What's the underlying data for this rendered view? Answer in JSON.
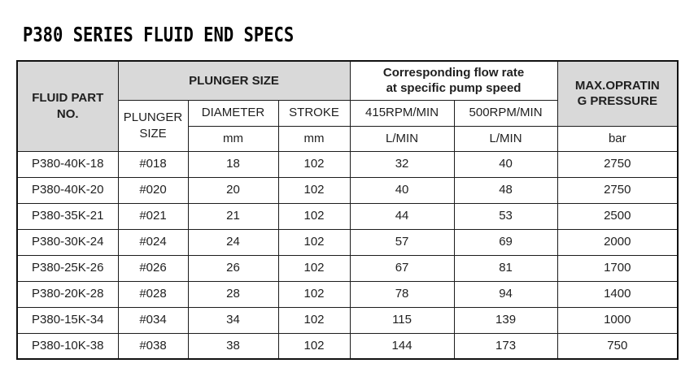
{
  "page_title": "P380 SERIES FLUID END SPECS",
  "colors": {
    "header_fill": "#d9d9d9",
    "border": "#1c1c1c",
    "text": "#1f1f1f",
    "background": "#ffffff"
  },
  "table": {
    "header": {
      "fluid_part": {
        "line1": "FLUID PART",
        "line2": "NO."
      },
      "plunger_size_group": "PLUNGER SIZE",
      "plunger_size_sub": {
        "line1": "PLUNGER",
        "line2": "SIZE"
      },
      "diameter": "DIAMETER",
      "stroke": "STROKE",
      "flow_rate_group": {
        "line1": "Corresponding flow rate",
        "line2": "at specific pump speed"
      },
      "rpm_415": "415RPM/MIN",
      "rpm_500": "500RPM/MIN",
      "max_pressure": {
        "line1": "MAX.OPRATIN",
        "line2": "G PRESSURE"
      },
      "units": {
        "diameter_mm": "mm",
        "stroke_mm": "mm",
        "flow_415": "L/MIN",
        "flow_500": "L/MIN",
        "pressure": "bar"
      }
    },
    "column_names": [
      "fluid-part-no",
      "plunger-size",
      "diameter-mm",
      "stroke-mm",
      "flow-415-lmin",
      "flow-500-lmin",
      "max-pressure-bar"
    ],
    "rows": [
      [
        "P380-40K-18",
        "#018",
        "18",
        "102",
        "32",
        "40",
        "2750"
      ],
      [
        "P380-40K-20",
        "#020",
        "20",
        "102",
        "40",
        "48",
        "2750"
      ],
      [
        "P380-35K-21",
        "#021",
        "21",
        "102",
        "44",
        "53",
        "2500"
      ],
      [
        "P380-30K-24",
        "#024",
        "24",
        "102",
        "57",
        "69",
        "2000"
      ],
      [
        "P380-25K-26",
        "#026",
        "26",
        "102",
        "67",
        "81",
        "1700"
      ],
      [
        "P380-20K-28",
        "#028",
        "28",
        "102",
        "78",
        "94",
        "1400"
      ],
      [
        "P380-15K-34",
        "#034",
        "34",
        "102",
        "115",
        "139",
        "1000"
      ],
      [
        "P380-10K-38",
        "#038",
        "38",
        "102",
        "144",
        "173",
        "750"
      ]
    ]
  }
}
